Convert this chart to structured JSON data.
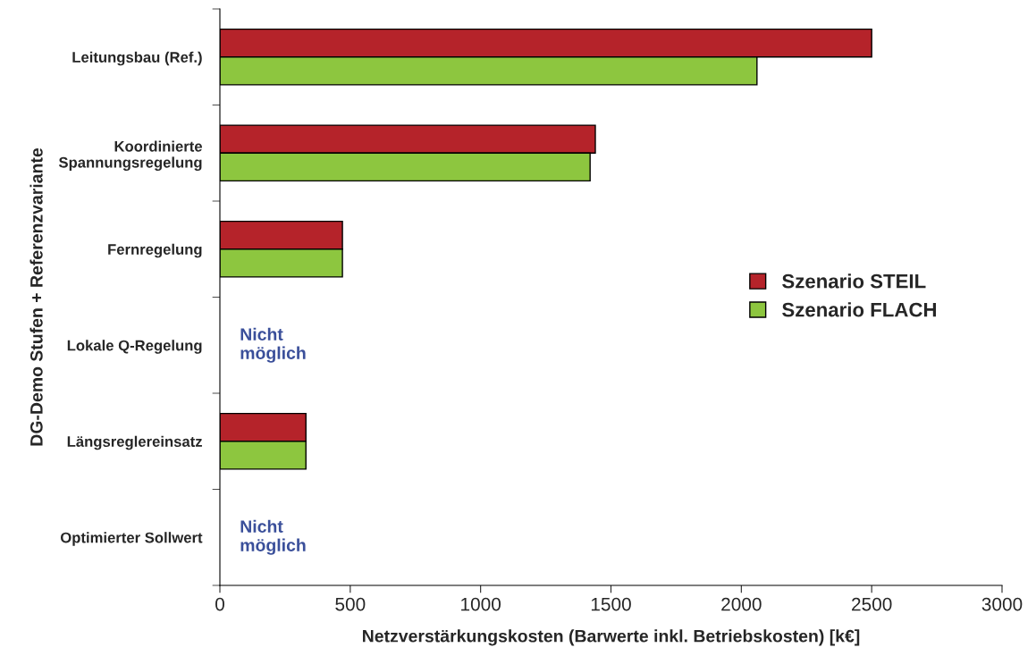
{
  "chart_data": {
    "type": "bar",
    "orientation": "horizontal",
    "categories": [
      "Leitungsbau (Ref.)",
      "Koordinierte\nSpannungsregelung",
      "Fernregelung",
      "Lokale Q-Regelung",
      "Längsreglereinsatz",
      "Optimierter Sollwert"
    ],
    "series": [
      {
        "name": "Szenario STEIL",
        "color": "#b5232a",
        "values": [
          2500,
          1440,
          470,
          null,
          330,
          null
        ]
      },
      {
        "name": "Szenario FLACH",
        "color": "#8dc63f",
        "values": [
          2060,
          1420,
          470,
          null,
          330,
          null
        ]
      }
    ],
    "xlim": [
      0,
      3000
    ],
    "xticks": [
      0,
      500,
      1000,
      1500,
      2000,
      2500,
      3000
    ],
    "xlabel": "Netzverstärkungskosten (Barwerte inkl. Betriebskosten) [k€]",
    "ylabel": "DG-Demo Stufen + Referenzvariante",
    "annotations": [
      "Nicht\nmöglich",
      "Nicht\nmöglich"
    ],
    "legend": "right",
    "grid": false
  }
}
